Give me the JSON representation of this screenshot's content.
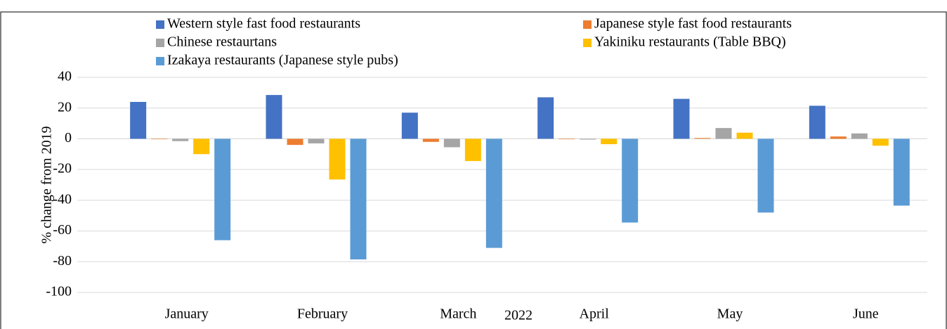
{
  "chart_data": {
    "type": "bar",
    "ylabel": "% change from 2019",
    "xlabel": "2022",
    "categories": [
      "January",
      "February",
      "March",
      "April",
      "May",
      "June"
    ],
    "series": [
      {
        "name": "Western style fast food restaurants",
        "color": "#4472c4",
        "values": [
          24,
          28.5,
          17,
          27,
          26,
          21.5
        ]
      },
      {
        "name": "Japanese style fast food restaurants",
        "color": "#ed7d31",
        "values": [
          -0.3,
          -4,
          -2,
          -0.3,
          0.5,
          1.5
        ]
      },
      {
        "name": "Chinese restaurtans",
        "color": "#a5a5a5",
        "values": [
          -1.5,
          -3,
          -5.5,
          -0.5,
          7,
          3.5
        ]
      },
      {
        "name": "Yakiniku restaurants (Table BBQ)",
        "color": "#ffc000",
        "values": [
          -10,
          -26.5,
          -14.5,
          -3.5,
          4,
          -4.5
        ]
      },
      {
        "name": "Izakaya restaurants (Japanese style pubs)",
        "color": "#5b9bd5",
        "values": [
          -66,
          -78.5,
          -71,
          -54.5,
          -48,
          -43.5
        ]
      }
    ],
    "ylim": [
      -100,
      40
    ],
    "yticks": [
      -100,
      -80,
      -60,
      -40,
      -20,
      0,
      20,
      40
    ],
    "grid": true,
    "legend": "top"
  }
}
